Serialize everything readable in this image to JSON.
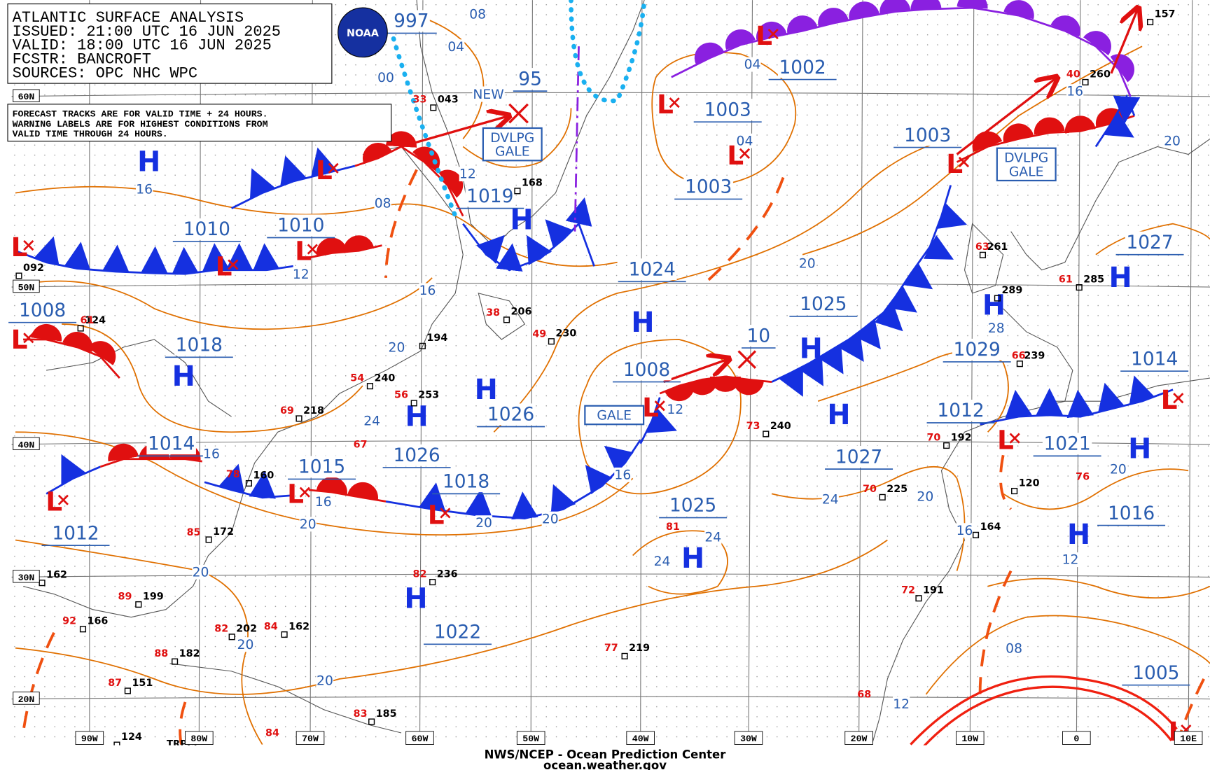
{
  "header": [
    "ATLANTIC SURFACE ANALYSIS",
    "ISSUED: 21:00 UTC 16 JUN 2025",
    "VALID:  18:00 UTC 16 JUN 2025",
    "FCSTR:  BANCROFT",
    "SOURCES: OPC NHC WPC"
  ],
  "logo": "NOAA",
  "note": [
    "FORECAST TRACKS ARE FOR VALID TIME + 24 HOURS.",
    "WARNING LABELS ARE FOR HIGHEST CONDITIONS FROM",
    "VALID TIME THROUGH 24 HOURS."
  ],
  "pressure_labels": [
    "997",
    "1019",
    "1010",
    "1010",
    "1002",
    "1003",
    "1003",
    "1003",
    "1024",
    "1025",
    "1008",
    "1018",
    "1026",
    "1026",
    "1018",
    "1015",
    "1014",
    "1012",
    "1008",
    "1029",
    "1027",
    "1012",
    "1014",
    "1027",
    "1021",
    "1016",
    "1025",
    "1022",
    "1005",
    "95",
    "10"
  ],
  "high_symbol": "H",
  "low_symbol": "L",
  "isobar_labels": [
    "08",
    "04",
    "00",
    "12",
    "08",
    "16",
    "12",
    "16",
    "20",
    "24",
    "16",
    "16",
    "20",
    "20",
    "20",
    "20",
    "20",
    "20",
    "16",
    "12",
    "04",
    "04",
    "20",
    "28",
    "16",
    "20",
    "20",
    "24",
    "24",
    "24",
    "16",
    "12",
    "20",
    "08",
    "12"
  ],
  "warnings": [
    "DVLPG GALE",
    "DVLPG GALE",
    "GALE"
  ],
  "new_label": "NEW",
  "station_pressures": [
    "043",
    "168",
    "206",
    "230",
    "194",
    "240",
    "253",
    "218",
    "160",
    "172",
    "162",
    "199",
    "166",
    "202",
    "162",
    "182",
    "151",
    "185",
    "124",
    "124",
    "236",
    "219",
    "240",
    "225",
    "192",
    "120",
    "164",
    "191",
    "261",
    "289",
    "285",
    "239",
    "260",
    "157",
    "092"
  ],
  "station_temps": [
    "69",
    "54",
    "56",
    "67",
    "78",
    "85",
    "89",
    "92",
    "82",
    "84",
    "88",
    "87",
    "83",
    "82",
    "77",
    "81",
    "73",
    "70",
    "70",
    "76",
    "72",
    "68",
    "63",
    "61",
    "66",
    "40",
    "84",
    "61",
    "49",
    "38",
    "33"
  ],
  "tropical_label": "TRPCL",
  "lat_labels": [
    "60N",
    "50N",
    "40N",
    "30N",
    "20N"
  ],
  "lon_labels": [
    "90W",
    "80W",
    "70W",
    "60W",
    "50W",
    "40W",
    "30W",
    "20W",
    "10W",
    "0",
    "10E"
  ],
  "footer": [
    "NWS/NCEP - Ocean Prediction Center",
    "ocean.weather.gov"
  ]
}
